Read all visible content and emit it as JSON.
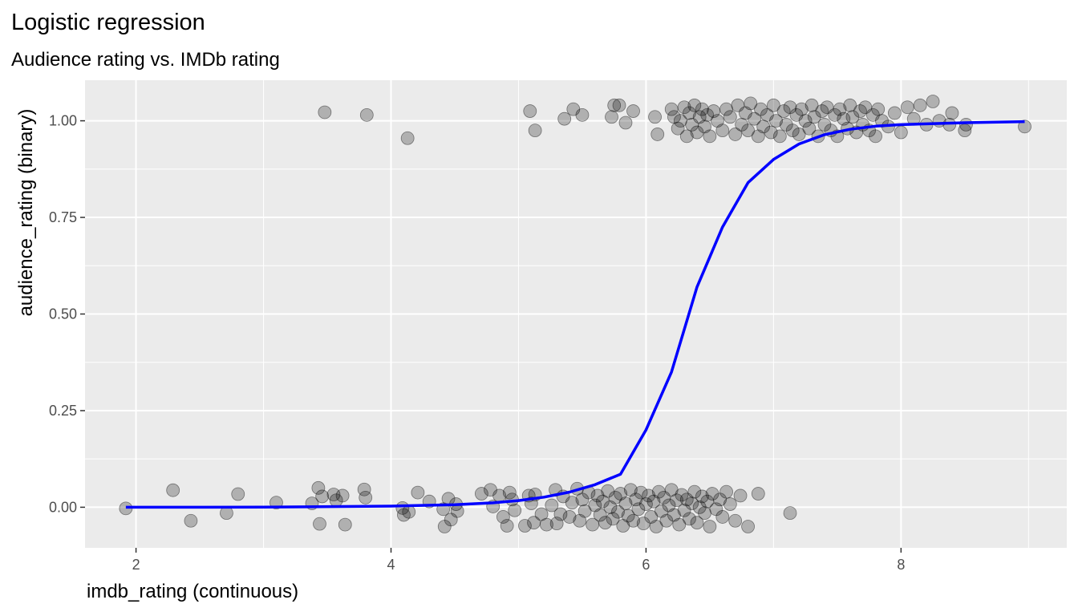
{
  "chart_data": {
    "type": "scatter",
    "title": "Logistic regression",
    "subtitle": "Audience rating vs. IMDb rating",
    "xlabel": "imdb_rating (continuous)",
    "ylabel": "audience_rating (binary)",
    "xlim": [
      1.6,
      9.3
    ],
    "ylim": [
      -0.105,
      1.105
    ],
    "x_ticks": [
      2,
      4,
      6,
      8
    ],
    "x_tick_labels": [
      "2",
      "4",
      "6",
      "8"
    ],
    "y_ticks": [
      0,
      0.25,
      0.5,
      0.75,
      1
    ],
    "y_tick_labels": [
      "0.00",
      "0.25",
      "0.50",
      "0.75",
      "1.00"
    ],
    "grid": true,
    "legend": "none",
    "colors": {
      "panel": "#ebebeb",
      "grid": "#ffffff",
      "points": "#000000",
      "curve": "#0000ff"
    },
    "points": [
      [
        1.92,
        -0.003
      ],
      [
        2.29,
        0.044
      ],
      [
        2.43,
        -0.035
      ],
      [
        2.71,
        -0.015
      ],
      [
        2.8,
        0.034
      ],
      [
        3.1,
        0.012
      ],
      [
        3.38,
        0.01
      ],
      [
        3.43,
        0.05
      ],
      [
        3.44,
        -0.043
      ],
      [
        3.46,
        0.028
      ],
      [
        3.55,
        0.033
      ],
      [
        3.57,
        0.018
      ],
      [
        3.62,
        0.03
      ],
      [
        3.64,
        -0.045
      ],
      [
        3.79,
        0.046
      ],
      [
        3.8,
        0.025
      ],
      [
        4.09,
        -0.002
      ],
      [
        4.1,
        -0.02
      ],
      [
        4.14,
        -0.012
      ],
      [
        4.21,
        0.038
      ],
      [
        4.3,
        0.015
      ],
      [
        4.41,
        -0.005
      ],
      [
        4.42,
        -0.05
      ],
      [
        4.45,
        0.022
      ],
      [
        4.47,
        -0.032
      ],
      [
        4.51,
        0.008
      ],
      [
        4.52,
        -0.01
      ],
      [
        4.71,
        0.035
      ],
      [
        4.78,
        0.045
      ],
      [
        4.8,
        0.002
      ],
      [
        4.85,
        0.03
      ],
      [
        4.88,
        -0.025
      ],
      [
        4.91,
        -0.048
      ],
      [
        4.93,
        0.038
      ],
      [
        4.95,
        0.02
      ],
      [
        4.97,
        -0.008
      ],
      [
        5.05,
        -0.048
      ],
      [
        5.08,
        0.03
      ],
      [
        5.1,
        0.01
      ],
      [
        5.12,
        -0.04
      ],
      [
        5.13,
        0.033
      ],
      [
        5.18,
        -0.018
      ],
      [
        5.22,
        -0.045
      ],
      [
        5.26,
        0.005
      ],
      [
        5.29,
        0.045
      ],
      [
        5.3,
        -0.042
      ],
      [
        5.33,
        -0.018
      ],
      [
        5.35,
        0.028
      ],
      [
        5.4,
        -0.025
      ],
      [
        5.42,
        0.012
      ],
      [
        5.46,
        0.048
      ],
      [
        5.48,
        -0.035
      ],
      [
        5.5,
        0.02
      ],
      [
        5.52,
        -0.01
      ],
      [
        5.55,
        0.038
      ],
      [
        5.58,
        -0.045
      ],
      [
        5.6,
        0.005
      ],
      [
        5.62,
        0.03
      ],
      [
        5.64,
        -0.02
      ],
      [
        5.66,
        0.015
      ],
      [
        5.68,
        -0.04
      ],
      [
        5.7,
        0.042
      ],
      [
        5.72,
        0.0
      ],
      [
        5.74,
        -0.03
      ],
      [
        5.76,
        0.025
      ],
      [
        5.78,
        -0.012
      ],
      [
        5.8,
        0.035
      ],
      [
        5.82,
        -0.048
      ],
      [
        5.84,
        0.01
      ],
      [
        5.86,
        -0.022
      ],
      [
        5.88,
        0.045
      ],
      [
        5.9,
        -0.035
      ],
      [
        5.92,
        0.02
      ],
      [
        5.94,
        -0.005
      ],
      [
        5.96,
        0.038
      ],
      [
        5.98,
        -0.042
      ],
      [
        6.0,
        0.008
      ],
      [
        6.02,
        0.03
      ],
      [
        6.04,
        -0.025
      ],
      [
        6.06,
        0.015
      ],
      [
        6.08,
        -0.05
      ],
      [
        6.1,
        0.04
      ],
      [
        6.12,
        -0.01
      ],
      [
        6.14,
        0.025
      ],
      [
        6.16,
        -0.035
      ],
      [
        6.18,
        0.005
      ],
      [
        6.2,
        0.045
      ],
      [
        6.22,
        -0.02
      ],
      [
        6.24,
        0.018
      ],
      [
        6.26,
        -0.045
      ],
      [
        6.28,
        0.032
      ],
      [
        6.3,
        -0.008
      ],
      [
        6.32,
        0.02
      ],
      [
        6.34,
        -0.03
      ],
      [
        6.36,
        0.01
      ],
      [
        6.38,
        0.04
      ],
      [
        6.4,
        -0.04
      ],
      [
        6.42,
        0.0
      ],
      [
        6.44,
        0.028
      ],
      [
        6.46,
        -0.015
      ],
      [
        6.48,
        0.015
      ],
      [
        6.5,
        -0.05
      ],
      [
        6.52,
        0.035
      ],
      [
        6.55,
        -0.005
      ],
      [
        6.58,
        0.02
      ],
      [
        6.6,
        -0.025
      ],
      [
        6.63,
        0.04
      ],
      [
        6.66,
        0.008
      ],
      [
        6.7,
        -0.035
      ],
      [
        6.74,
        0.03
      ],
      [
        6.8,
        -0.05
      ],
      [
        6.88,
        0.035
      ],
      [
        7.13,
        -0.015
      ],
      [
        3.48,
        1.022
      ],
      [
        3.81,
        1.015
      ],
      [
        4.13,
        0.955
      ],
      [
        5.09,
        1.025
      ],
      [
        5.13,
        0.975
      ],
      [
        5.36,
        1.005
      ],
      [
        5.43,
        1.03
      ],
      [
        5.5,
        1.015
      ],
      [
        5.73,
        1.01
      ],
      [
        5.75,
        1.04
      ],
      [
        5.79,
        1.04
      ],
      [
        5.84,
        0.995
      ],
      [
        5.9,
        1.025
      ],
      [
        6.07,
        1.01
      ],
      [
        6.09,
        0.965
      ],
      [
        6.2,
        1.03
      ],
      [
        6.22,
        1.01
      ],
      [
        6.25,
        0.98
      ],
      [
        6.27,
        1.0
      ],
      [
        6.3,
        1.035
      ],
      [
        6.32,
        0.96
      ],
      [
        6.34,
        1.02
      ],
      [
        6.36,
        0.99
      ],
      [
        6.38,
        1.04
      ],
      [
        6.4,
        0.97
      ],
      [
        6.42,
        1.01
      ],
      [
        6.44,
        1.03
      ],
      [
        6.46,
        0.985
      ],
      [
        6.48,
        1.015
      ],
      [
        6.5,
        0.96
      ],
      [
        6.53,
        1.025
      ],
      [
        6.56,
        1.0
      ],
      [
        6.6,
        0.975
      ],
      [
        6.63,
        1.03
      ],
      [
        6.66,
        1.01
      ],
      [
        6.7,
        0.965
      ],
      [
        6.72,
        1.04
      ],
      [
        6.75,
        0.99
      ],
      [
        6.78,
        1.02
      ],
      [
        6.8,
        0.975
      ],
      [
        6.82,
        1.045
      ],
      [
        6.85,
        1.005
      ],
      [
        6.88,
        0.96
      ],
      [
        6.9,
        1.03
      ],
      [
        6.92,
        0.985
      ],
      [
        6.95,
        1.015
      ],
      [
        6.98,
        0.97
      ],
      [
        7.0,
        1.04
      ],
      [
        7.02,
        1.0
      ],
      [
        7.05,
        0.96
      ],
      [
        7.08,
        1.025
      ],
      [
        7.1,
        0.99
      ],
      [
        7.13,
        1.035
      ],
      [
        7.15,
        0.975
      ],
      [
        7.18,
        1.015
      ],
      [
        7.2,
        0.965
      ],
      [
        7.22,
        1.03
      ],
      [
        7.25,
        1.0
      ],
      [
        7.28,
        0.98
      ],
      [
        7.3,
        1.04
      ],
      [
        7.32,
        1.01
      ],
      [
        7.35,
        0.96
      ],
      [
        7.38,
        1.025
      ],
      [
        7.4,
        0.99
      ],
      [
        7.42,
        1.035
      ],
      [
        7.45,
        0.975
      ],
      [
        7.48,
        1.015
      ],
      [
        7.5,
        0.96
      ],
      [
        7.52,
        1.03
      ],
      [
        7.55,
        1.005
      ],
      [
        7.58,
        0.98
      ],
      [
        7.6,
        1.04
      ],
      [
        7.62,
        1.01
      ],
      [
        7.65,
        0.97
      ],
      [
        7.68,
        1.025
      ],
      [
        7.7,
        0.99
      ],
      [
        7.72,
        1.035
      ],
      [
        7.75,
        0.975
      ],
      [
        7.78,
        1.015
      ],
      [
        7.8,
        0.96
      ],
      [
        7.82,
        1.03
      ],
      [
        7.85,
        1.0
      ],
      [
        7.9,
        0.985
      ],
      [
        7.95,
        1.02
      ],
      [
        8.0,
        0.97
      ],
      [
        8.05,
        1.035
      ],
      [
        8.1,
        1.005
      ],
      [
        8.15,
        1.04
      ],
      [
        8.2,
        0.99
      ],
      [
        8.25,
        1.05
      ],
      [
        8.3,
        1.0
      ],
      [
        8.38,
        0.99
      ],
      [
        8.4,
        1.02
      ],
      [
        8.5,
        0.975
      ],
      [
        8.51,
        0.99
      ],
      [
        8.97,
        0.985
      ]
    ],
    "fit": {
      "name": "",
      "x": [
        1.92,
        3.0,
        4.0,
        4.5,
        4.8,
        5.0,
        5.2,
        5.4,
        5.6,
        5.8,
        6.0,
        6.2,
        6.4,
        6.6,
        6.8,
        7.0,
        7.2,
        7.4,
        7.6,
        7.8,
        8.0,
        8.5,
        8.97
      ],
      "y": [
        0.0,
        0.0003,
        0.003,
        0.0064,
        0.0114,
        0.0173,
        0.0262,
        0.0393,
        0.0583,
        0.0856,
        0.2,
        0.35,
        0.57,
        0.725,
        0.84,
        0.9,
        0.94,
        0.964,
        0.978,
        0.986,
        0.99,
        0.995,
        0.998
      ]
    }
  }
}
